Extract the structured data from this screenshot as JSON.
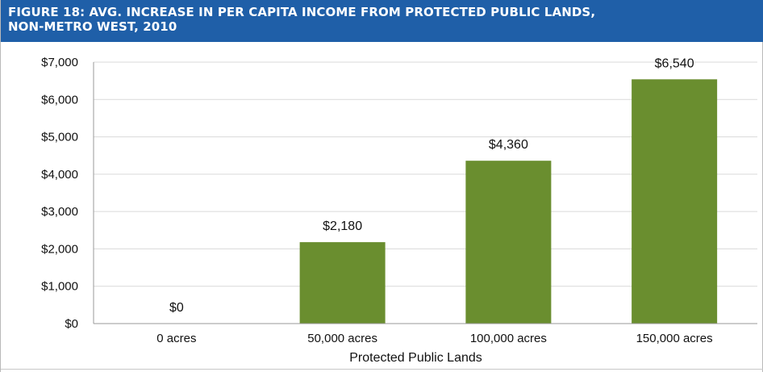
{
  "figure": {
    "title_line1": "FIGURE 18: AVG. INCREASE IN PER CAPITA INCOME FROM PROTECTED PUBLIC LANDS,",
    "title_line2": "NON-METRO WEST, 2010",
    "header_color": "#1f5fa8"
  },
  "chart_data": {
    "type": "bar",
    "title": "FIGURE 18: AVG. INCREASE IN PER CAPITA INCOME FROM PROTECTED PUBLIC LANDS, NON-METRO WEST, 2010",
    "xlabel": "Protected Public Lands",
    "ylabel": "",
    "categories": [
      "0 acres",
      "50,000 acres",
      "100,000 acres",
      "150,000 acres"
    ],
    "values": [
      0,
      2180,
      4360,
      6540
    ],
    "data_labels": [
      "$0",
      "$2,180",
      "$4,360",
      "$6,540"
    ],
    "ylim": [
      0,
      7000
    ],
    "yticks": [
      0,
      1000,
      2000,
      3000,
      4000,
      5000,
      6000,
      7000
    ],
    "ytick_labels": [
      "$0",
      "$1,000",
      "$2,000",
      "$3,000",
      "$4,000",
      "$5,000",
      "$6,000",
      "$7,000"
    ],
    "grid": true,
    "legend": "none",
    "bar_color": "#6a8e2f"
  }
}
